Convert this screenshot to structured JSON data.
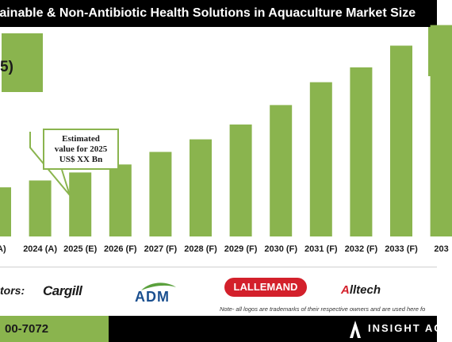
{
  "title": "tainable & Non-Antibiotic Health Solutions in Aquaculture Market Size",
  "header_box_text": "5)",
  "callout": {
    "line1": "Estimated",
    "line2": "value for 2025",
    "line3": "US$ XX Bn"
  },
  "chart_data": {
    "type": "bar",
    "categories": [
      "(A)",
      "2024 (A)",
      "2025 (E)",
      "2026 (F)",
      "2027 (F)",
      "2028 (F)",
      "2029 (F)",
      "2030 (F)",
      "2031 (F)",
      "2032 (F)",
      "2033 (F)",
      "203"
    ],
    "values": [
      43,
      49,
      56,
      63,
      74,
      85,
      98,
      115,
      135,
      148,
      167,
      185
    ],
    "ylim": [
      0,
      200
    ],
    "grid": false,
    "bar_color": "#8ab44e"
  },
  "competitors_label": "tors:",
  "logos": {
    "cargill": "Cargill",
    "adm": "ADM",
    "lallemand": "LALLEMAND",
    "alltech_prefix": "A",
    "alltech_rest": "lltech"
  },
  "note": "Note- all logos are trademarks of their respective owners and are used here fo",
  "phone": "00-7072",
  "brand": "INSIGHT AC",
  "colors": {
    "accent": "#8ab44e",
    "header": "#000000"
  }
}
